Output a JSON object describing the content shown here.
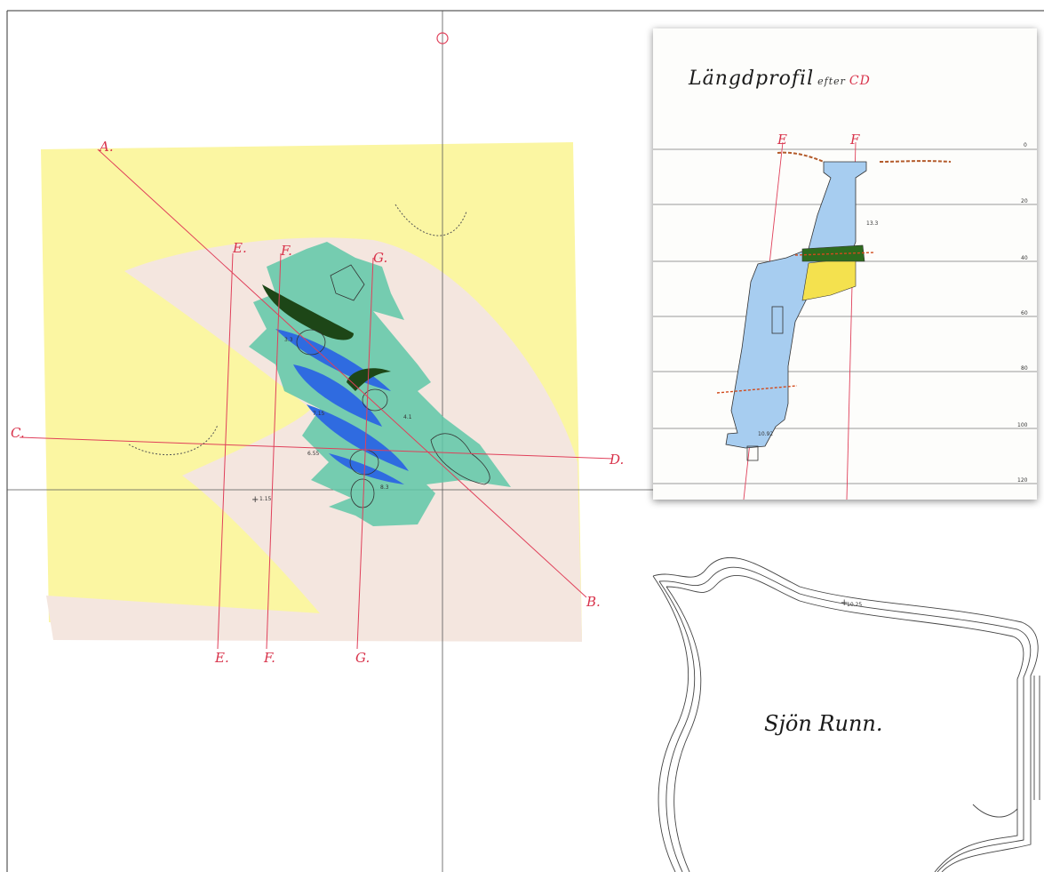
{
  "map": {
    "section_labels": {
      "A": "A.",
      "B": "B.",
      "C": "C.",
      "D": "D.",
      "E_top": "E.",
      "E_bottom": "E.",
      "F_top": "F.",
      "F_bottom": "F.",
      "G_top": "G.",
      "G_bottom": "G."
    },
    "spot_heights": [
      "1.15",
      "10.25",
      "3.3",
      "7.15",
      "8.3",
      "4.1",
      "6.55"
    ],
    "lake_name": "Sjön Runn."
  },
  "inset": {
    "title_main": "Längdprofil",
    "title_word": "efter",
    "title_section": "CD",
    "section_labels": [
      "E",
      "F"
    ],
    "depth_scale": [
      "0",
      "20",
      "40",
      "60",
      "80",
      "100",
      "120"
    ],
    "depth_annotations": [
      "10.92",
      "13.3"
    ]
  },
  "colors": {
    "yellow_zone": "#fbf6a2",
    "pink_zone": "#f4e6df",
    "teal_ore": "#5ec7a8",
    "blue_ore": "#2f6be0",
    "dark_green": "#1d4617",
    "profile_blue": "#a7cdf0",
    "section_red": "#e0405a"
  }
}
